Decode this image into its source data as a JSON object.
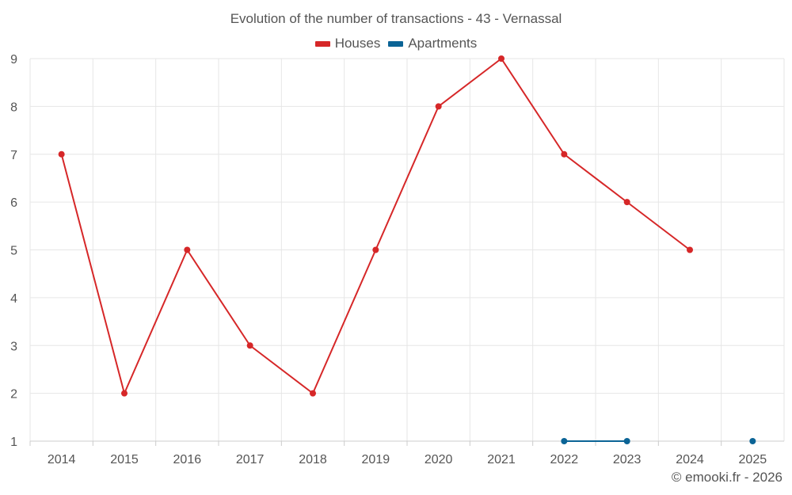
{
  "chart_data": {
    "type": "line",
    "title": "Evolution of the number of transactions - 43 - Vernassal",
    "xlabel": "",
    "ylabel": "",
    "categories": [
      "2014",
      "2015",
      "2016",
      "2017",
      "2018",
      "2019",
      "2020",
      "2021",
      "2022",
      "2023",
      "2024",
      "2025"
    ],
    "ylim": [
      1,
      9
    ],
    "yticks": [
      1,
      2,
      3,
      4,
      5,
      6,
      7,
      8,
      9
    ],
    "grid": true,
    "legend_position": "top-center",
    "series": [
      {
        "name": "Houses",
        "color": "#d62728",
        "values": [
          7,
          2,
          5,
          3,
          2,
          5,
          8,
          9,
          7,
          6,
          5,
          null
        ]
      },
      {
        "name": "Apartments",
        "color": "#0b6496",
        "values": [
          null,
          null,
          null,
          null,
          null,
          null,
          null,
          null,
          1,
          1,
          null,
          1
        ]
      }
    ]
  },
  "footer": {
    "copyright": "© emooki.fr - 2026"
  }
}
